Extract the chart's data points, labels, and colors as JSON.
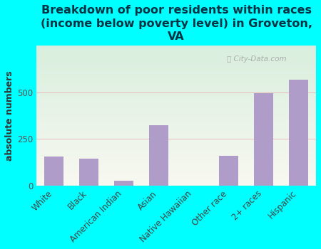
{
  "title": "Breakdown of poor residents within races\n(income below poverty level) in Groveton,\nVA",
  "categories": [
    "White",
    "Black",
    "American Indian",
    "Asian",
    "Native Hawaiian",
    "Other race",
    "2+ races",
    "Hispanic"
  ],
  "values": [
    155,
    145,
    25,
    325,
    0,
    160,
    495,
    570
  ],
  "bar_color": "#b09cc8",
  "ylabel": "absolute numbers",
  "ylim": [
    0,
    750
  ],
  "yticks": [
    0,
    250,
    500
  ],
  "background_outer": "#00ffff",
  "background_plot_top": "#d8eedd",
  "background_plot_bottom": "#f8f8f0",
  "grid_color": "#e8a0a8",
  "watermark": "City-Data.com",
  "title_fontsize": 11.5,
  "title_color": "#003344",
  "ylabel_fontsize": 9,
  "tick_fontsize": 8.5,
  "bar_width": 0.55
}
